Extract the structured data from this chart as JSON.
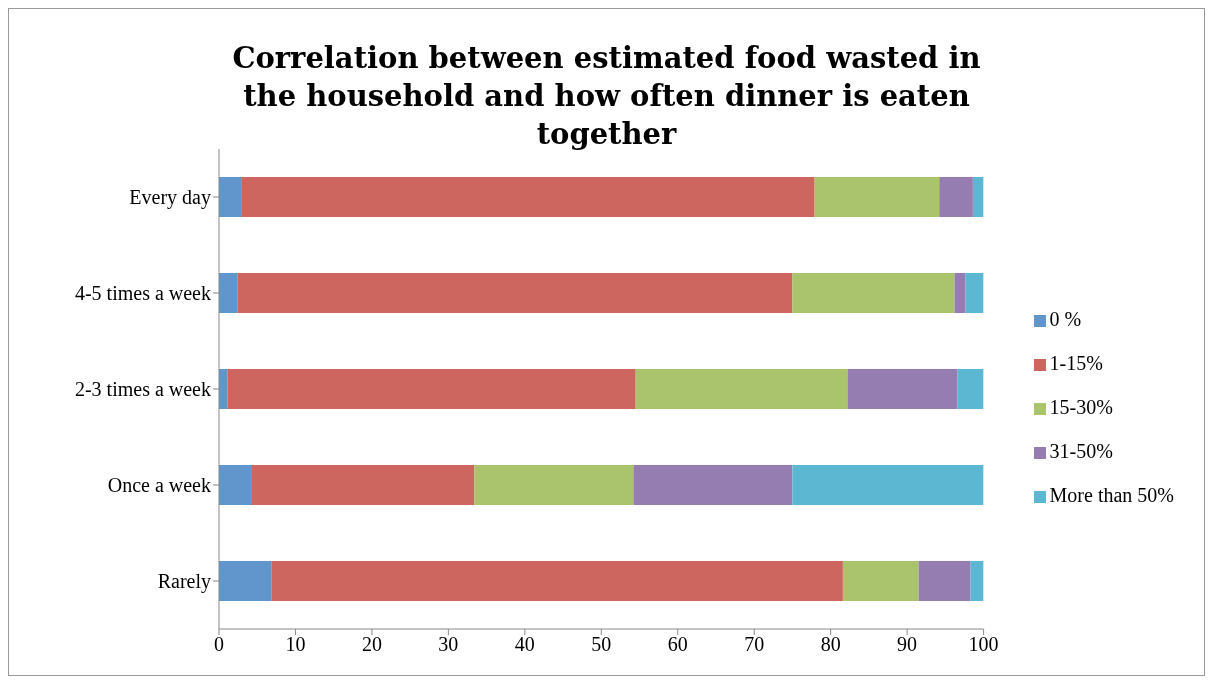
{
  "chart_data": {
    "type": "bar",
    "orientation": "horizontal",
    "stacked": true,
    "title": "Correlation between estimated food wasted in the household and how often dinner is eaten together",
    "categories": [
      "Every day",
      "4-5 times a week",
      "2-3 times a week",
      "Once a week",
      "Rarely"
    ],
    "series": [
      {
        "name": "0 %",
        "color": "#6096cc",
        "values": [
          2.9,
          2.4,
          1.1,
          4.2,
          6.9
        ]
      },
      {
        "name": "1-15%",
        "color": "#cd665f",
        "values": [
          75.0,
          72.6,
          53.4,
          29.2,
          74.7
        ]
      },
      {
        "name": "15-30%",
        "color": "#aac46d",
        "values": [
          16.3,
          21.2,
          27.7,
          20.8,
          9.9
        ]
      },
      {
        "name": "31-50%",
        "color": "#957db1",
        "values": [
          4.4,
          1.4,
          14.4,
          20.8,
          6.8
        ]
      },
      {
        "name": "More than 50%",
        "color": "#5cb8d2",
        "values": [
          1.4,
          2.4,
          3.4,
          25.0,
          1.7
        ]
      }
    ],
    "xlim": [
      0,
      100
    ],
    "xticks": [
      0,
      10,
      20,
      30,
      40,
      50,
      60,
      70,
      80,
      90,
      100
    ],
    "grid": false,
    "legend": "right"
  }
}
